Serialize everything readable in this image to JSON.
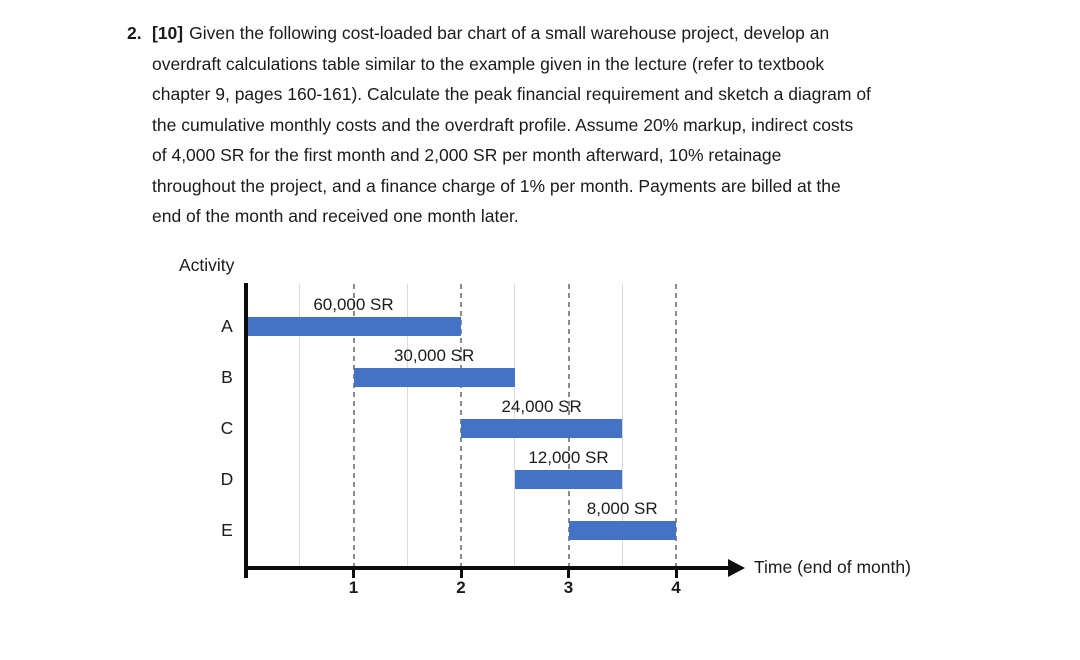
{
  "problem": {
    "number": "2.",
    "points_tag": "[10]",
    "lines": [
      "Given the following cost-loaded bar chart of a small warehouse project, develop an",
      "overdraft calculations table similar to the example given in the lecture (refer to textbook",
      "chapter 9, pages 160-161). Calculate the peak financial requirement and sketch a diagram of",
      "the cumulative monthly costs and the overdraft profile. Assume 20% markup, indirect costs",
      "of 4,000 SR for the first month and 2,000 SR per month afterward, 10% retainage",
      "throughout the project, and a finance charge of 1% per month. Payments are billed at the",
      "end of the month and received one month later."
    ]
  },
  "chart_data": {
    "type": "bar",
    "subtype": "gantt-cost-loaded",
    "title": "",
    "ylabel": "Activity",
    "xlabel": "Time (end of month)",
    "x_ticks": [
      "1",
      "2",
      "3",
      "4"
    ],
    "xlim": [
      0,
      4.5
    ],
    "grid": {
      "dashed_at": [
        1,
        2,
        3,
        4
      ],
      "light_at": [
        0.5,
        1.5,
        2.5,
        3.5
      ]
    },
    "bar_color": "#4472C4",
    "axis_color": "#0d0d0d",
    "bars": [
      {
        "activity": "A",
        "start_month": 0,
        "end_month": 2,
        "cost_label": "60,000 SR",
        "cost_sr": 60000
      },
      {
        "activity": "B",
        "start_month": 1,
        "end_month": 2.5,
        "cost_label": "30,000 SR",
        "cost_sr": 30000
      },
      {
        "activity": "C",
        "start_month": 2,
        "end_month": 3.5,
        "cost_label": "24,000 SR",
        "cost_sr": 24000
      },
      {
        "activity": "D",
        "start_month": 2.5,
        "end_month": 3.5,
        "cost_label": "12,000 SR",
        "cost_sr": 12000
      },
      {
        "activity": "E",
        "start_month": 3,
        "end_month": 4,
        "cost_label": "8,000 SR",
        "cost_sr": 8000
      }
    ]
  }
}
